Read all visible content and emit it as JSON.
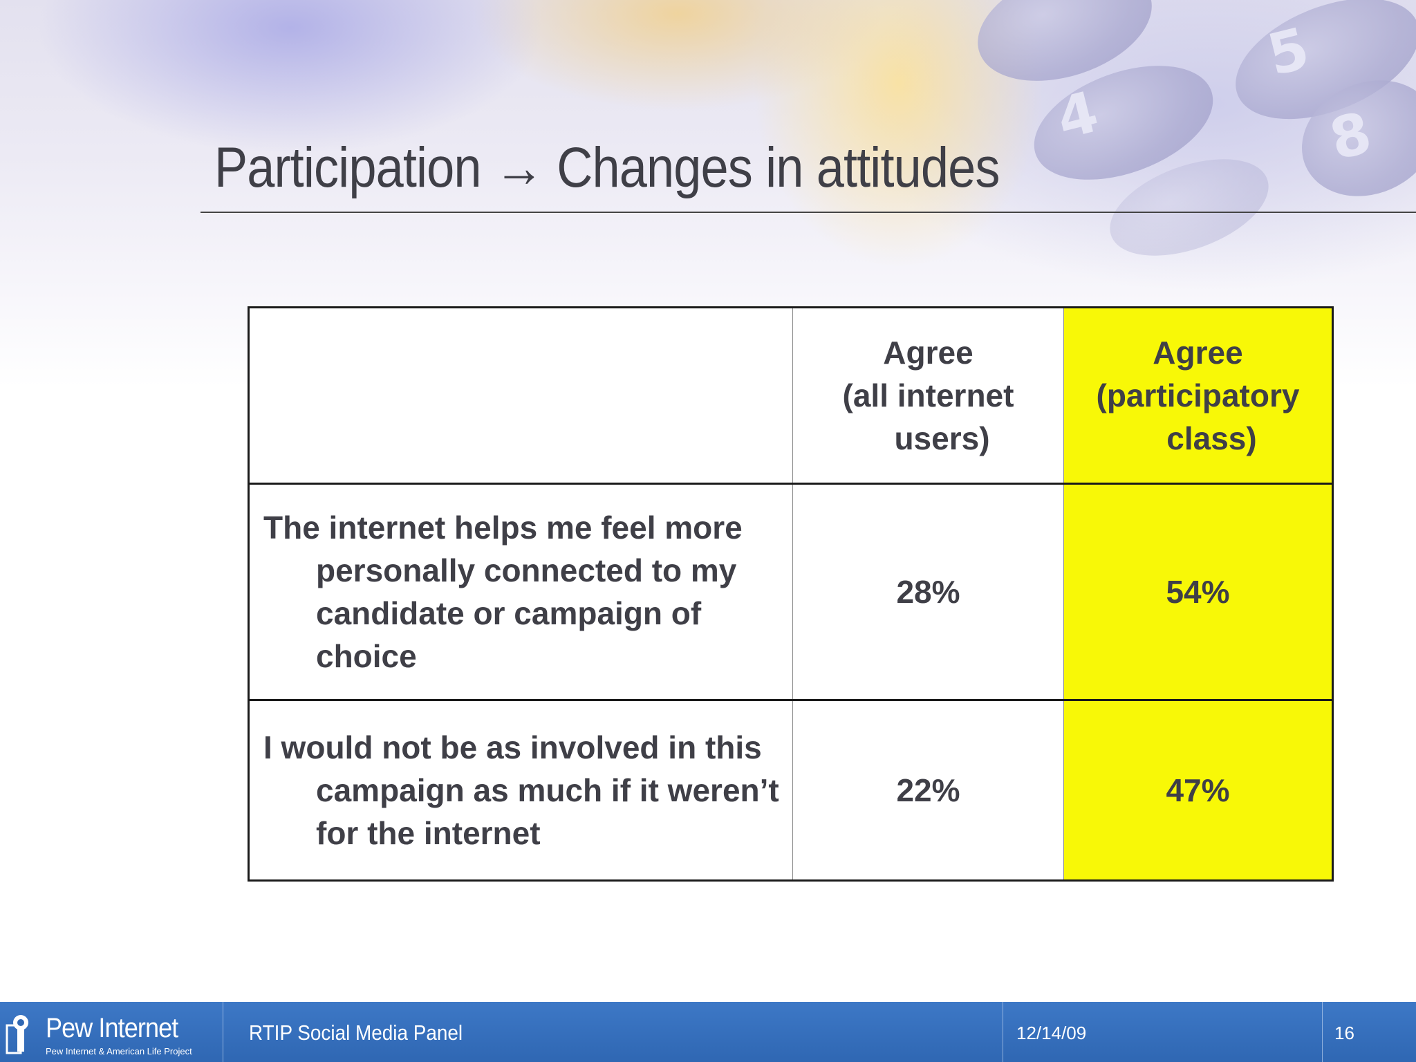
{
  "slide": {
    "title": "Participation → Changes in attitudes"
  },
  "table": {
    "headers": [
      "",
      "Agree (all internet users)",
      "Agree (participatory class)"
    ],
    "header_lines": {
      "all_users": [
        "Agree",
        "(all internet",
        "users)"
      ],
      "participatory": [
        "Agree",
        "(participatory",
        "class)"
      ]
    },
    "rows": [
      {
        "statement": "The internet helps me feel more personally connected to my candidate or campaign of choice",
        "all_users": "28%",
        "participatory": "54%"
      },
      {
        "statement": "I would not be as involved in this campaign as much if it weren’t for the internet",
        "all_users": "22%",
        "participatory": "47%"
      }
    ],
    "highlight_color": "#f8f807"
  },
  "footer": {
    "logo_main": "Pew Internet",
    "logo_sub": "Pew Internet & American Life Project",
    "presentation": "RTIP Social Media Panel",
    "date": "12/14/09",
    "page": "16"
  },
  "icons": {
    "logo": "pew-keyhole-icon"
  },
  "colors": {
    "footer_bar": "#2f67b3",
    "title_text": "#3f3f47"
  }
}
